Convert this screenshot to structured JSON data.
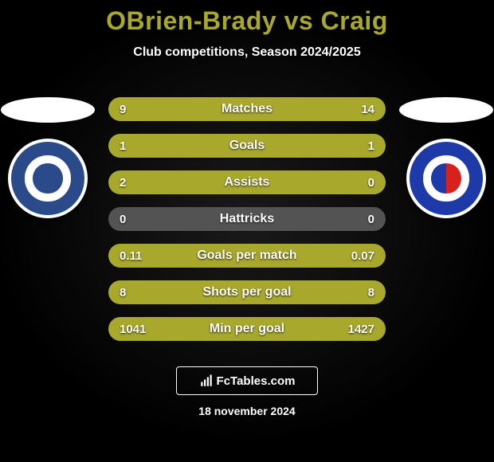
{
  "title": "OBrien-Brady vs Craig",
  "subtitle": "Club competitions, Season 2024/2025",
  "date": "18 november 2024",
  "brand": "FcTables.com",
  "colors": {
    "accent": "#a8a82c",
    "bar_empty": "#535353",
    "text": "#ffffff"
  },
  "badges": {
    "left": {
      "ring": "#ffffff",
      "inner_ring": "#2a4a8a",
      "mid": "#ffffff",
      "center": "#2a4a8a"
    },
    "right": {
      "ring": "#ffffff",
      "inner_ring": "#1e3aa8",
      "mid": "#ffffff",
      "center_stripes": [
        "#1e3aa8",
        "#d6221a"
      ]
    }
  },
  "stats": [
    {
      "label": "Matches",
      "left_val": "9",
      "right_val": "14",
      "left_pct": 39,
      "right_pct": 61
    },
    {
      "label": "Goals",
      "left_val": "1",
      "right_val": "1",
      "left_pct": 50,
      "right_pct": 50
    },
    {
      "label": "Assists",
      "left_val": "2",
      "right_val": "0",
      "left_pct": 100,
      "right_pct": 0
    },
    {
      "label": "Hattricks",
      "left_val": "0",
      "right_val": "0",
      "left_pct": 0,
      "right_pct": 0
    },
    {
      "label": "Goals per match",
      "left_val": "0.11",
      "right_val": "0.07",
      "left_pct": 61,
      "right_pct": 39
    },
    {
      "label": "Shots per goal",
      "left_val": "8",
      "right_val": "8",
      "left_pct": 50,
      "right_pct": 50
    },
    {
      "label": "Min per goal",
      "left_val": "1041",
      "right_val": "1427",
      "left_pct": 42,
      "right_pct": 58
    }
  ]
}
